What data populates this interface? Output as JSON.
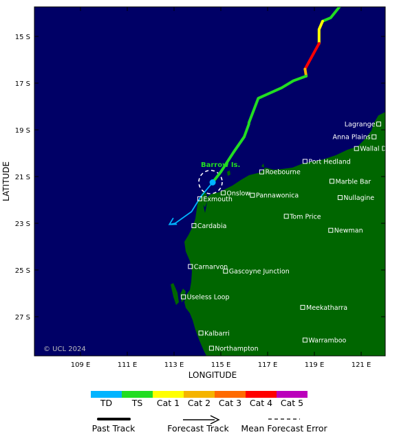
{
  "map": {
    "ocean_color": "#000066",
    "land_color": "#006600",
    "copyright": "© UCL 2024",
    "x_axis_title": "LONGITUDE",
    "y_axis_title": "LATITUDE",
    "lon_ticks": [
      {
        "lon": 109,
        "label": "109 E"
      },
      {
        "lon": 111,
        "label": "111 E"
      },
      {
        "lon": 113,
        "label": "113 E"
      },
      {
        "lon": 115,
        "label": "115 E"
      },
      {
        "lon": 117,
        "label": "117 E"
      },
      {
        "lon": 119,
        "label": "119 E"
      },
      {
        "lon": 121,
        "label": "121 E"
      }
    ],
    "lat_ticks": [
      {
        "lat": -15,
        "label": "15 S"
      },
      {
        "lat": -17,
        "label": "17 S"
      },
      {
        "lat": -19,
        "label": "19 S"
      },
      {
        "lat": -21,
        "label": "21 S"
      },
      {
        "lat": -23,
        "label": "23 S"
      },
      {
        "lat": -25,
        "label": "25 S"
      },
      {
        "lat": -27,
        "label": "27 S"
      }
    ],
    "storm_label": "Barrow Is.",
    "storm_position": {
      "lon": 114.65,
      "lat": -21.25
    },
    "towns": [
      {
        "name": "Lagrange",
        "lon": 121.75,
        "lat": -18.75
      },
      {
        "name": "Anna Plains",
        "lon": 121.55,
        "lat": -19.3
      },
      {
        "name": "Wallal Downs",
        "lon": 120.8,
        "lat": -19.8
      },
      {
        "name": "Port Hedland",
        "lon": 118.6,
        "lat": -20.35
      },
      {
        "name": "Roebourne",
        "lon": 116.75,
        "lat": -20.8
      },
      {
        "name": "Marble Bar",
        "lon": 119.75,
        "lat": -21.2
      },
      {
        "name": "Onslow",
        "lon": 115.1,
        "lat": -21.7
      },
      {
        "name": "Pannawonica",
        "lon": 116.35,
        "lat": -21.8
      },
      {
        "name": "Exmouth",
        "lon": 114.1,
        "lat": -21.95
      },
      {
        "name": "Nullagine",
        "lon": 120.1,
        "lat": -21.9
      },
      {
        "name": "Tom Price",
        "lon": 117.8,
        "lat": -22.7
      },
      {
        "name": "Cardabia",
        "lon": 113.85,
        "lat": -23.1
      },
      {
        "name": "Newman",
        "lon": 119.7,
        "lat": -23.3
      },
      {
        "name": "Carnarvon",
        "lon": 113.7,
        "lat": -24.85
      },
      {
        "name": "Gascoyne Junction",
        "lon": 115.2,
        "lat": -25.05
      },
      {
        "name": "Useless Loop",
        "lon": 113.4,
        "lat": -26.15
      },
      {
        "name": "Meekatharra",
        "lon": 118.5,
        "lat": -26.6
      },
      {
        "name": "Kalbarri",
        "lon": 114.15,
        "lat": -27.7
      },
      {
        "name": "Warramboo",
        "lon": 118.6,
        "lat": -28.0
      },
      {
        "name": "Northampton",
        "lon": 114.6,
        "lat": -28.35
      }
    ],
    "track_segments": [
      {
        "category": "TS",
        "points": [
          [
            120.1,
            -13.7
          ],
          [
            119.7,
            -14.2
          ],
          [
            119.35,
            -14.35
          ]
        ]
      },
      {
        "category": "Cat 1",
        "points": [
          [
            119.35,
            -14.35
          ],
          [
            119.2,
            -14.7
          ],
          [
            119.2,
            -15.3
          ]
        ]
      },
      {
        "category": "Cat 4",
        "points": [
          [
            119.2,
            -15.3
          ],
          [
            118.6,
            -16.4
          ]
        ]
      },
      {
        "category": "Cat 2",
        "points": [
          [
            118.6,
            -16.4
          ],
          [
            118.65,
            -16.7
          ]
        ]
      },
      {
        "category": "TS",
        "points": [
          [
            118.65,
            -16.7
          ],
          [
            118.1,
            -16.9
          ],
          [
            117.6,
            -17.2
          ],
          [
            116.6,
            -17.65
          ],
          [
            116.2,
            -18.7
          ],
          [
            116.2,
            -18.75
          ],
          [
            116.0,
            -19.3
          ],
          [
            115.55,
            -19.95
          ],
          [
            115.0,
            -20.8
          ],
          [
            114.65,
            -21.25
          ]
        ]
      },
      {
        "category": "TD",
        "points": [
          [
            114.65,
            -21.25
          ],
          [
            114.15,
            -21.85
          ],
          [
            113.75,
            -22.5
          ],
          [
            113.05,
            -23.0
          ]
        ]
      }
    ],
    "forecast_arrow_end": {
      "lon": 112.8,
      "lat": -23.05
    }
  },
  "legend": {
    "categories": [
      {
        "label": "TD",
        "color": "#00b4ff"
      },
      {
        "label": "TS",
        "color": "#22dd22"
      },
      {
        "label": "Cat 1",
        "color": "#ffff00"
      },
      {
        "label": "Cat 2",
        "color": "#f5b400"
      },
      {
        "label": "Cat 3",
        "color": "#ff6a00"
      },
      {
        "label": "Cat 4",
        "color": "#ff0000"
      },
      {
        "label": "Cat 5",
        "color": "#bb00bb"
      }
    ],
    "past_track": "Past Track",
    "forecast_track": "Forecast Track",
    "mean_error": "Mean Forecast Error"
  }
}
